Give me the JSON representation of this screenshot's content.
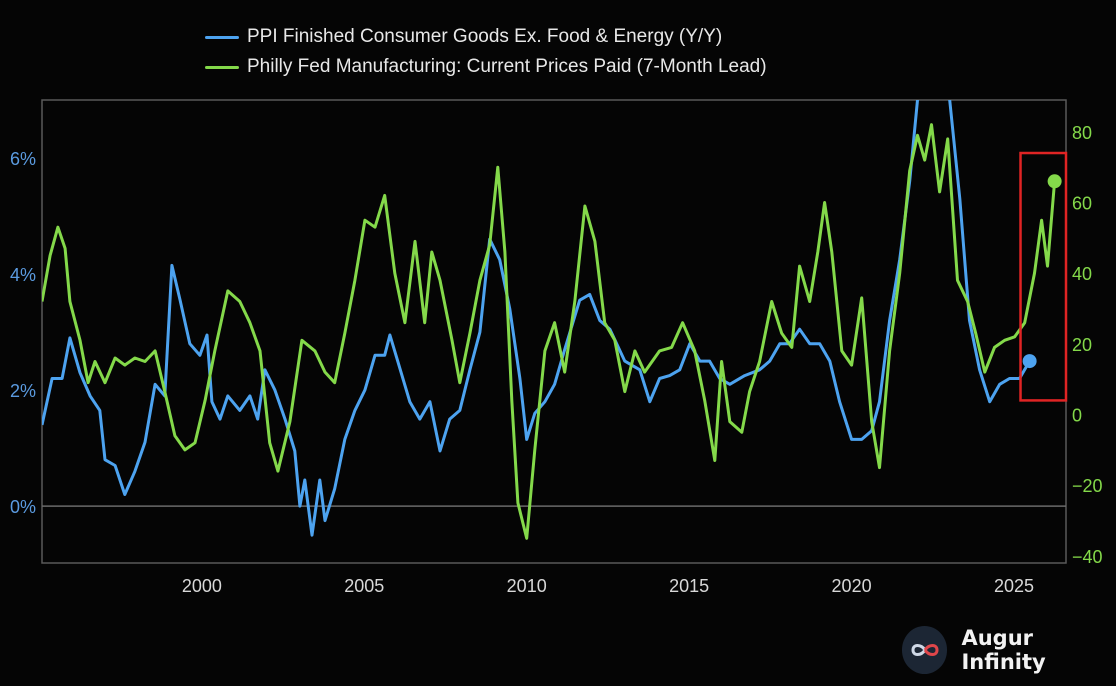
{
  "chart_data": {
    "type": "line",
    "title": "",
    "xlabel": "",
    "ylabel_left": "",
    "ylabel_right": "",
    "xlim": [
      1995.08,
      2026.6
    ],
    "ylim_left": [
      -0.98,
      7.0
    ],
    "ylim_right": [
      -42,
      89
    ],
    "x_ticks": [
      2000,
      2005,
      2010,
      2015,
      2020,
      2025
    ],
    "x_tick_labels": [
      "2000",
      "2005",
      "2010",
      "2015",
      "2020",
      "2025"
    ],
    "y_left_ticks": [
      0,
      2,
      4,
      6
    ],
    "y_left_tick_labels": [
      "0%",
      "2%",
      "4%",
      "6%"
    ],
    "y_right_ticks": [
      -40,
      -20,
      0,
      20,
      40,
      60,
      80
    ],
    "y_right_tick_labels": [
      "−40",
      "−20",
      "0",
      "20",
      "40",
      "60",
      "80"
    ],
    "grid": false,
    "reference_line_left": 0,
    "legend_placement": "top-center",
    "highlight_box": {
      "x": [
        2025.2,
        2026.6
      ],
      "y_right": [
        4,
        74
      ],
      "color": "#e02424"
    },
    "series": [
      {
        "name": "PPI Finished Consumer Goods Ex. Food & Energy (Y/Y)",
        "axis": "left",
        "color": "#4da3f0",
        "end_marker": true,
        "points": [
          [
            1995.08,
            1.4
          ],
          [
            1995.39,
            2.2
          ],
          [
            1995.7,
            2.2
          ],
          [
            1995.94,
            2.9
          ],
          [
            1996.25,
            2.3
          ],
          [
            1996.56,
            1.9
          ],
          [
            1996.86,
            1.65
          ],
          [
            1997.02,
            0.8
          ],
          [
            1997.33,
            0.7
          ],
          [
            1997.63,
            0.2
          ],
          [
            1997.94,
            0.6
          ],
          [
            1998.25,
            1.1
          ],
          [
            1998.56,
            2.1
          ],
          [
            1998.86,
            1.9
          ],
          [
            1999.08,
            4.15
          ],
          [
            1999.33,
            3.55
          ],
          [
            1999.63,
            2.8
          ],
          [
            1999.94,
            2.6
          ],
          [
            2000.16,
            2.95
          ],
          [
            2000.31,
            1.8
          ],
          [
            2000.56,
            1.5
          ],
          [
            2000.8,
            1.9
          ],
          [
            2001.17,
            1.65
          ],
          [
            2001.48,
            1.9
          ],
          [
            2001.72,
            1.5
          ],
          [
            2001.94,
            2.35
          ],
          [
            2002.25,
            2.0
          ],
          [
            2002.56,
            1.5
          ],
          [
            2002.86,
            0.95
          ],
          [
            2003.02,
            0.0
          ],
          [
            2003.17,
            0.45
          ],
          [
            2003.39,
            -0.5
          ],
          [
            2003.63,
            0.45
          ],
          [
            2003.79,
            -0.25
          ],
          [
            2004.09,
            0.3
          ],
          [
            2004.4,
            1.15
          ],
          [
            2004.71,
            1.65
          ],
          [
            2005.02,
            2.0
          ],
          [
            2005.33,
            2.6
          ],
          [
            2005.63,
            2.6
          ],
          [
            2005.79,
            2.95
          ],
          [
            2006.03,
            2.5
          ],
          [
            2006.4,
            1.8
          ],
          [
            2006.71,
            1.5
          ],
          [
            2007.02,
            1.8
          ],
          [
            2007.33,
            0.95
          ],
          [
            2007.63,
            1.5
          ],
          [
            2007.94,
            1.65
          ],
          [
            2008.25,
            2.35
          ],
          [
            2008.56,
            3.0
          ],
          [
            2008.86,
            4.6
          ],
          [
            2009.17,
            4.25
          ],
          [
            2009.48,
            3.4
          ],
          [
            2009.79,
            2.2
          ],
          [
            2010.0,
            1.15
          ],
          [
            2010.25,
            1.6
          ],
          [
            2010.56,
            1.8
          ],
          [
            2010.86,
            2.1
          ],
          [
            2011.17,
            2.7
          ],
          [
            2011.63,
            3.55
          ],
          [
            2011.94,
            3.65
          ],
          [
            2012.25,
            3.2
          ],
          [
            2012.56,
            3.05
          ],
          [
            2013.02,
            2.5
          ],
          [
            2013.48,
            2.35
          ],
          [
            2013.79,
            1.8
          ],
          [
            2014.09,
            2.2
          ],
          [
            2014.4,
            2.25
          ],
          [
            2014.71,
            2.35
          ],
          [
            2015.02,
            2.8
          ],
          [
            2015.33,
            2.5
          ],
          [
            2015.63,
            2.5
          ],
          [
            2015.94,
            2.2
          ],
          [
            2016.25,
            2.1
          ],
          [
            2016.71,
            2.25
          ],
          [
            2017.17,
            2.35
          ],
          [
            2017.48,
            2.5
          ],
          [
            2017.79,
            2.8
          ],
          [
            2018.09,
            2.8
          ],
          [
            2018.4,
            3.05
          ],
          [
            2018.71,
            2.8
          ],
          [
            2019.02,
            2.8
          ],
          [
            2019.33,
            2.5
          ],
          [
            2019.63,
            1.8
          ],
          [
            2020.0,
            1.15
          ],
          [
            2020.31,
            1.15
          ],
          [
            2020.62,
            1.3
          ],
          [
            2020.86,
            1.8
          ],
          [
            2021.17,
            3.2
          ],
          [
            2021.48,
            4.25
          ],
          [
            2021.79,
            5.6
          ],
          [
            2022.03,
            7.0
          ],
          [
            2022.3,
            8.0
          ],
          [
            2022.7,
            8.0
          ],
          [
            2023.02,
            7.0
          ],
          [
            2023.33,
            5.3
          ],
          [
            2023.63,
            3.2
          ],
          [
            2023.94,
            2.35
          ],
          [
            2024.25,
            1.8
          ],
          [
            2024.56,
            2.1
          ],
          [
            2024.86,
            2.2
          ],
          [
            2025.17,
            2.2
          ],
          [
            2025.48,
            2.5
          ]
        ]
      },
      {
        "name": "Philly Fed Manufacturing: Current Prices Paid (7-Month Lead)",
        "axis": "right",
        "color": "#84d94a",
        "end_marker": true,
        "points": [
          [
            1995.08,
            32
          ],
          [
            1995.33,
            45
          ],
          [
            1995.57,
            53
          ],
          [
            1995.79,
            47
          ],
          [
            1995.94,
            32
          ],
          [
            1996.25,
            21
          ],
          [
            1996.5,
            9
          ],
          [
            1996.71,
            15
          ],
          [
            1997.02,
            9
          ],
          [
            1997.33,
            16
          ],
          [
            1997.63,
            14
          ],
          [
            1997.94,
            16
          ],
          [
            1998.25,
            15
          ],
          [
            1998.56,
            18
          ],
          [
            1998.86,
            6.5
          ],
          [
            1999.17,
            -6
          ],
          [
            1999.48,
            -10
          ],
          [
            1999.79,
            -8
          ],
          [
            2000.1,
            4
          ],
          [
            2000.4,
            18
          ],
          [
            2000.8,
            35
          ],
          [
            2001.17,
            32
          ],
          [
            2001.48,
            26
          ],
          [
            2001.79,
            18
          ],
          [
            2002.09,
            -8
          ],
          [
            2002.34,
            -16
          ],
          [
            2002.71,
            -2
          ],
          [
            2003.08,
            21
          ],
          [
            2003.48,
            18
          ],
          [
            2003.79,
            12
          ],
          [
            2004.09,
            9
          ],
          [
            2004.4,
            23
          ],
          [
            2004.71,
            38
          ],
          [
            2005.02,
            55
          ],
          [
            2005.33,
            53
          ],
          [
            2005.63,
            62
          ],
          [
            2005.94,
            40
          ],
          [
            2006.25,
            26
          ],
          [
            2006.56,
            49
          ],
          [
            2006.86,
            26
          ],
          [
            2007.08,
            46
          ],
          [
            2007.33,
            38
          ],
          [
            2007.7,
            21
          ],
          [
            2007.94,
            9
          ],
          [
            2008.25,
            23
          ],
          [
            2008.56,
            38
          ],
          [
            2008.86,
            48
          ],
          [
            2009.11,
            70
          ],
          [
            2009.33,
            46
          ],
          [
            2009.54,
            4
          ],
          [
            2009.73,
            -25
          ],
          [
            2010.0,
            -35
          ],
          [
            2010.25,
            -10
          ],
          [
            2010.56,
            18
          ],
          [
            2010.86,
            26
          ],
          [
            2011.17,
            12
          ],
          [
            2011.48,
            32
          ],
          [
            2011.79,
            59
          ],
          [
            2012.1,
            49
          ],
          [
            2012.4,
            26
          ],
          [
            2012.71,
            21
          ],
          [
            2013.02,
            6.5
          ],
          [
            2013.33,
            18
          ],
          [
            2013.63,
            12
          ],
          [
            2014.09,
            18
          ],
          [
            2014.46,
            19
          ],
          [
            2014.8,
            26
          ],
          [
            2015.17,
            18
          ],
          [
            2015.48,
            4
          ],
          [
            2015.79,
            -13
          ],
          [
            2016.0,
            15
          ],
          [
            2016.25,
            -2
          ],
          [
            2016.62,
            -5
          ],
          [
            2016.86,
            6.5
          ],
          [
            2017.17,
            15
          ],
          [
            2017.54,
            32
          ],
          [
            2017.85,
            23
          ],
          [
            2018.16,
            19
          ],
          [
            2018.4,
            42
          ],
          [
            2018.71,
            32
          ],
          [
            2018.96,
            46
          ],
          [
            2019.17,
            60
          ],
          [
            2019.39,
            46
          ],
          [
            2019.7,
            18
          ],
          [
            2020.0,
            14
          ],
          [
            2020.31,
            33
          ],
          [
            2020.62,
            -2
          ],
          [
            2020.86,
            -15
          ],
          [
            2021.17,
            18
          ],
          [
            2021.48,
            40
          ],
          [
            2021.79,
            69
          ],
          [
            2022.03,
            79
          ],
          [
            2022.25,
            72
          ],
          [
            2022.46,
            82
          ],
          [
            2022.71,
            63
          ],
          [
            2022.96,
            78
          ],
          [
            2023.26,
            38
          ],
          [
            2023.57,
            32
          ],
          [
            2023.82,
            23
          ],
          [
            2024.1,
            12
          ],
          [
            2024.4,
            19
          ],
          [
            2024.71,
            21
          ],
          [
            2025.02,
            22
          ],
          [
            2025.33,
            26
          ],
          [
            2025.63,
            40
          ],
          [
            2025.85,
            55
          ],
          [
            2026.03,
            42
          ],
          [
            2026.25,
            66
          ]
        ]
      }
    ]
  },
  "legend": {
    "items": [
      {
        "label": "PPI Finished Consumer Goods Ex. Food & Energy (Y/Y)",
        "color": "#4da3f0"
      },
      {
        "label": "Philly Fed Manufacturing: Current Prices Paid (7-Month Lead)",
        "color": "#84d94a"
      }
    ]
  },
  "brand": {
    "name": "Augur Infinity",
    "icon": "infinity-icon"
  },
  "colors": {
    "background": "#050505",
    "axis": "#5a5a5a",
    "left_axis_text": "#5b9be0",
    "right_axis_text": "#84d94a",
    "x_axis_text": "#d8d8d8"
  }
}
